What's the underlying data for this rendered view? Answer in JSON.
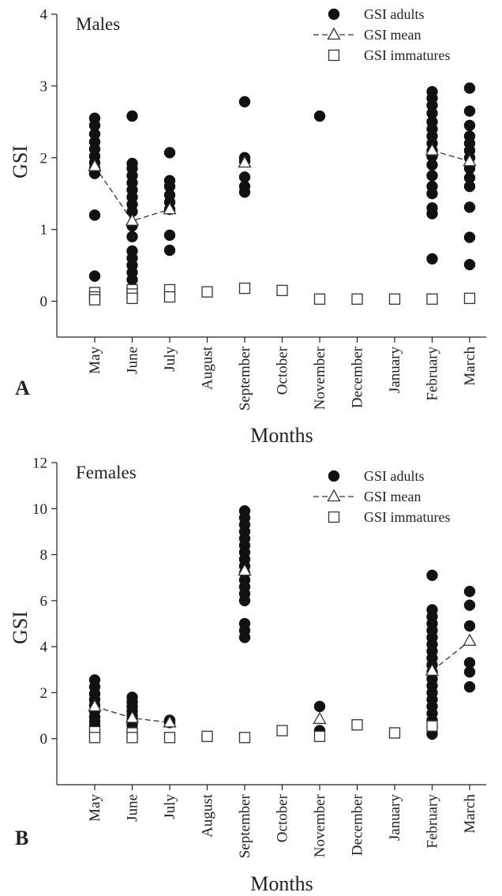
{
  "chart_data": [
    {
      "type": "scatter",
      "panel_label": "A",
      "title": "Males",
      "xlabel": "Months",
      "ylabel": "GSI",
      "ylim": [
        -0.5,
        4
      ],
      "yticks": [
        0,
        1,
        2,
        3,
        4
      ],
      "grid": false,
      "legend_position": "top-right",
      "categories": [
        "May",
        "June",
        "July",
        "August",
        "September",
        "October",
        "November",
        "December",
        "January",
        "February",
        "March"
      ],
      "series": [
        {
          "name": "GSI adults",
          "marker": "filled-circle",
          "points": [
            {
              "x": "May",
              "y": 2.55
            },
            {
              "x": "May",
              "y": 2.45
            },
            {
              "x": "May",
              "y": 2.33
            },
            {
              "x": "May",
              "y": 2.22
            },
            {
              "x": "May",
              "y": 2.12
            },
            {
              "x": "May",
              "y": 2.02
            },
            {
              "x": "May",
              "y": 1.93
            },
            {
              "x": "May",
              "y": 1.85
            },
            {
              "x": "May",
              "y": 1.78
            },
            {
              "x": "May",
              "y": 1.2
            },
            {
              "x": "May",
              "y": 0.35
            },
            {
              "x": "June",
              "y": 2.58
            },
            {
              "x": "June",
              "y": 1.92
            },
            {
              "x": "June",
              "y": 1.85
            },
            {
              "x": "June",
              "y": 1.75
            },
            {
              "x": "June",
              "y": 1.65
            },
            {
              "x": "June",
              "y": 1.55
            },
            {
              "x": "June",
              "y": 1.45
            },
            {
              "x": "June",
              "y": 1.35
            },
            {
              "x": "June",
              "y": 1.25
            },
            {
              "x": "June",
              "y": 1.05
            },
            {
              "x": "June",
              "y": 0.9
            },
            {
              "x": "June",
              "y": 0.7
            },
            {
              "x": "June",
              "y": 0.6
            },
            {
              "x": "June",
              "y": 0.5
            },
            {
              "x": "June",
              "y": 0.4
            },
            {
              "x": "June",
              "y": 0.3
            },
            {
              "x": "July",
              "y": 2.07
            },
            {
              "x": "July",
              "y": 1.68
            },
            {
              "x": "July",
              "y": 1.6
            },
            {
              "x": "July",
              "y": 1.48
            },
            {
              "x": "July",
              "y": 1.38
            },
            {
              "x": "July",
              "y": 1.28
            },
            {
              "x": "July",
              "y": 0.92
            },
            {
              "x": "July",
              "y": 0.71
            },
            {
              "x": "September",
              "y": 2.78
            },
            {
              "x": "September",
              "y": 2.0
            },
            {
              "x": "September",
              "y": 1.95
            },
            {
              "x": "September",
              "y": 1.73
            },
            {
              "x": "September",
              "y": 1.6
            },
            {
              "x": "September",
              "y": 1.52
            },
            {
              "x": "November",
              "y": 2.58
            },
            {
              "x": "February",
              "y": 2.92
            },
            {
              "x": "February",
              "y": 2.83
            },
            {
              "x": "February",
              "y": 2.73
            },
            {
              "x": "February",
              "y": 2.62
            },
            {
              "x": "February",
              "y": 2.5
            },
            {
              "x": "February",
              "y": 2.4
            },
            {
              "x": "February",
              "y": 2.3
            },
            {
              "x": "February",
              "y": 2.2
            },
            {
              "x": "February",
              "y": 2.1
            },
            {
              "x": "February",
              "y": 2.02
            },
            {
              "x": "February",
              "y": 1.9
            },
            {
              "x": "February",
              "y": 1.75
            },
            {
              "x": "February",
              "y": 1.6
            },
            {
              "x": "February",
              "y": 1.5
            },
            {
              "x": "February",
              "y": 1.3
            },
            {
              "x": "February",
              "y": 1.22
            },
            {
              "x": "February",
              "y": 0.59
            },
            {
              "x": "March",
              "y": 2.97
            },
            {
              "x": "March",
              "y": 2.65
            },
            {
              "x": "March",
              "y": 2.45
            },
            {
              "x": "March",
              "y": 2.3
            },
            {
              "x": "March",
              "y": 2.2
            },
            {
              "x": "March",
              "y": 2.1
            },
            {
              "x": "March",
              "y": 2.0
            },
            {
              "x": "March",
              "y": 1.85
            },
            {
              "x": "March",
              "y": 1.72
            },
            {
              "x": "March",
              "y": 1.6
            },
            {
              "x": "March",
              "y": 1.31
            },
            {
              "x": "March",
              "y": 0.89
            },
            {
              "x": "March",
              "y": 0.51
            }
          ]
        },
        {
          "name": "GSI mean",
          "marker": "open-triangle",
          "line": "dashed",
          "segments": [
            [
              "May",
              "June",
              "July"
            ],
            [
              "February",
              "March"
            ]
          ],
          "points": [
            {
              "x": "May",
              "y": 1.88
            },
            {
              "x": "June",
              "y": 1.12
            },
            {
              "x": "July",
              "y": 1.28
            },
            {
              "x": "September",
              "y": 1.93
            },
            {
              "x": "February",
              "y": 2.1
            },
            {
              "x": "March",
              "y": 1.95
            }
          ]
        },
        {
          "name": "GSI immatures",
          "marker": "open-square",
          "points": [
            {
              "x": "May",
              "y": 0.12
            },
            {
              "x": "May",
              "y": 0.06
            },
            {
              "x": "May",
              "y": 0.02
            },
            {
              "x": "June",
              "y": 0.16
            },
            {
              "x": "June",
              "y": 0.1
            },
            {
              "x": "June",
              "y": 0.04
            },
            {
              "x": "July",
              "y": 0.16
            },
            {
              "x": "July",
              "y": 0.06
            },
            {
              "x": "August",
              "y": 0.13
            },
            {
              "x": "September",
              "y": 0.18
            },
            {
              "x": "October",
              "y": 0.15
            },
            {
              "x": "November",
              "y": 0.03
            },
            {
              "x": "December",
              "y": 0.03
            },
            {
              "x": "January",
              "y": 0.03
            },
            {
              "x": "February",
              "y": 0.03
            },
            {
              "x": "March",
              "y": 0.04
            }
          ]
        }
      ]
    },
    {
      "type": "scatter",
      "panel_label": "B",
      "title": "Females",
      "xlabel": "Months",
      "ylabel": "GSI",
      "ylim": [
        -2,
        12
      ],
      "yticks": [
        0,
        2,
        4,
        6,
        8,
        10,
        12
      ],
      "grid": false,
      "legend_position": "top-right",
      "categories": [
        "May",
        "June",
        "July",
        "August",
        "September",
        "October",
        "November",
        "December",
        "January",
        "February",
        "March"
      ],
      "series": [
        {
          "name": "GSI adults",
          "marker": "filled-circle",
          "points": [
            {
              "x": "May",
              "y": 2.55
            },
            {
              "x": "May",
              "y": 2.25
            },
            {
              "x": "May",
              "y": 1.95
            },
            {
              "x": "May",
              "y": 1.7
            },
            {
              "x": "May",
              "y": 1.45
            },
            {
              "x": "May",
              "y": 1.2
            },
            {
              "x": "May",
              "y": 0.95
            },
            {
              "x": "May",
              "y": 0.75
            },
            {
              "x": "May",
              "y": 0.55
            },
            {
              "x": "May",
              "y": 0.35
            },
            {
              "x": "June",
              "y": 1.8
            },
            {
              "x": "June",
              "y": 1.6
            },
            {
              "x": "June",
              "y": 1.4
            },
            {
              "x": "June",
              "y": 1.2
            },
            {
              "x": "June",
              "y": 1.0
            },
            {
              "x": "June",
              "y": 0.8
            },
            {
              "x": "June",
              "y": 0.6
            },
            {
              "x": "July",
              "y": 0.8
            },
            {
              "x": "July",
              "y": 0.7
            },
            {
              "x": "September",
              "y": 9.9
            },
            {
              "x": "September",
              "y": 9.6
            },
            {
              "x": "September",
              "y": 9.3
            },
            {
              "x": "September",
              "y": 9.0
            },
            {
              "x": "September",
              "y": 8.7
            },
            {
              "x": "September",
              "y": 8.4
            },
            {
              "x": "September",
              "y": 8.1
            },
            {
              "x": "September",
              "y": 7.8
            },
            {
              "x": "September",
              "y": 7.5
            },
            {
              "x": "September",
              "y": 7.2
            },
            {
              "x": "September",
              "y": 6.9
            },
            {
              "x": "September",
              "y": 6.6
            },
            {
              "x": "September",
              "y": 6.3
            },
            {
              "x": "September",
              "y": 6.0
            },
            {
              "x": "September",
              "y": 5.0
            },
            {
              "x": "September",
              "y": 4.7
            },
            {
              "x": "September",
              "y": 4.4
            },
            {
              "x": "November",
              "y": 1.4
            },
            {
              "x": "November",
              "y": 0.35
            },
            {
              "x": "February",
              "y": 7.1
            },
            {
              "x": "February",
              "y": 5.6
            },
            {
              "x": "February",
              "y": 5.3
            },
            {
              "x": "February",
              "y": 5.0
            },
            {
              "x": "February",
              "y": 4.7
            },
            {
              "x": "February",
              "y": 4.4
            },
            {
              "x": "February",
              "y": 4.1
            },
            {
              "x": "February",
              "y": 3.8
            },
            {
              "x": "February",
              "y": 3.5
            },
            {
              "x": "February",
              "y": 3.2
            },
            {
              "x": "February",
              "y": 2.9
            },
            {
              "x": "February",
              "y": 2.6
            },
            {
              "x": "February",
              "y": 2.3
            },
            {
              "x": "February",
              "y": 2.0
            },
            {
              "x": "February",
              "y": 1.7
            },
            {
              "x": "February",
              "y": 1.4
            },
            {
              "x": "February",
              "y": 1.1
            },
            {
              "x": "February",
              "y": 0.8
            },
            {
              "x": "February",
              "y": 0.5
            },
            {
              "x": "February",
              "y": 0.2
            },
            {
              "x": "March",
              "y": 6.4
            },
            {
              "x": "March",
              "y": 5.8
            },
            {
              "x": "March",
              "y": 4.9
            },
            {
              "x": "March",
              "y": 3.3
            },
            {
              "x": "March",
              "y": 2.9
            },
            {
              "x": "March",
              "y": 2.25
            }
          ]
        },
        {
          "name": "GSI mean",
          "marker": "open-triangle",
          "line": "dashed",
          "segments": [
            [
              "May",
              "June",
              "July"
            ],
            [
              "February",
              "March"
            ]
          ],
          "points": [
            {
              "x": "May",
              "y": 1.4
            },
            {
              "x": "June",
              "y": 0.9
            },
            {
              "x": "July",
              "y": 0.7
            },
            {
              "x": "September",
              "y": 7.3
            },
            {
              "x": "November",
              "y": 0.85
            },
            {
              "x": "February",
              "y": 2.95
            },
            {
              "x": "March",
              "y": 4.25
            }
          ]
        },
        {
          "name": "GSI immatures",
          "marker": "open-square",
          "points": [
            {
              "x": "May",
              "y": 0.3
            },
            {
              "x": "May",
              "y": 0.05
            },
            {
              "x": "June",
              "y": 0.25
            },
            {
              "x": "June",
              "y": 0.05
            },
            {
              "x": "July",
              "y": 0.05
            },
            {
              "x": "August",
              "y": 0.1
            },
            {
              "x": "September",
              "y": 0.05
            },
            {
              "x": "October",
              "y": 0.35
            },
            {
              "x": "November",
              "y": 0.1
            },
            {
              "x": "December",
              "y": 0.6
            },
            {
              "x": "January",
              "y": 0.25
            },
            {
              "x": "February",
              "y": 0.55
            }
          ]
        }
      ]
    }
  ]
}
